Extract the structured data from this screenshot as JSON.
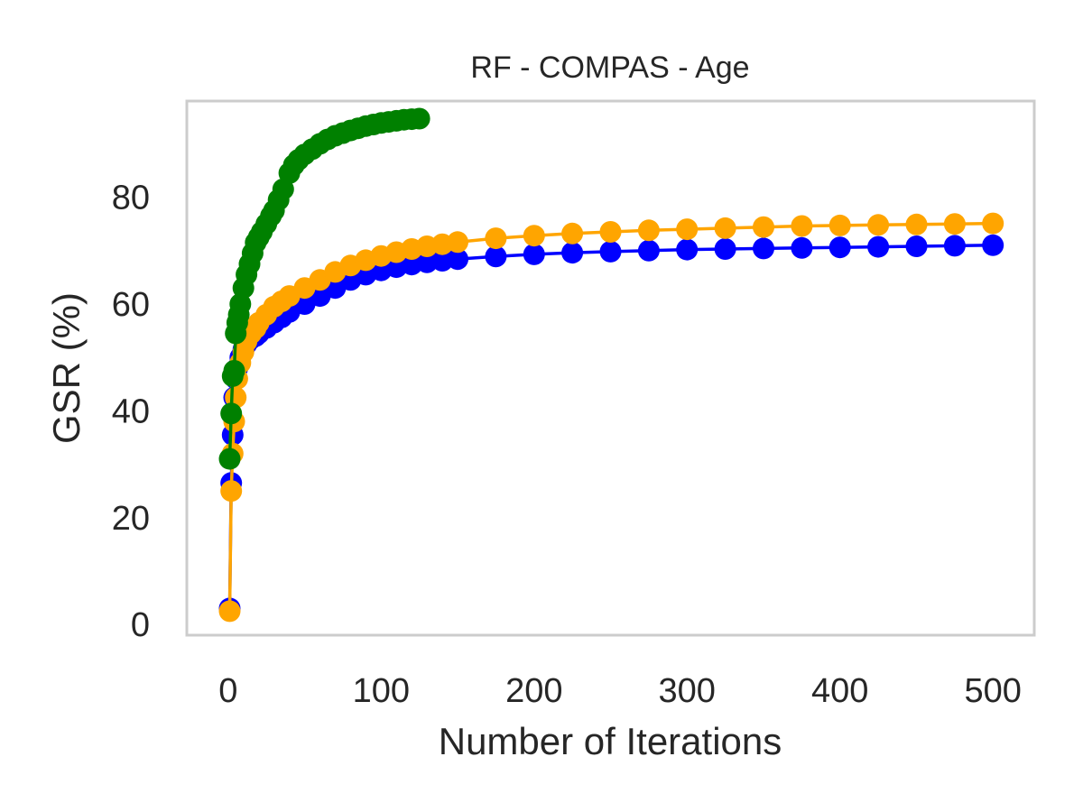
{
  "chart_data": {
    "type": "line",
    "title": "RF - COMPAS - Age",
    "xlabel": "Number of Iterations",
    "ylabel": "GSR (%)",
    "xlim": [
      -27,
      527
    ],
    "ylim": [
      -2,
      98
    ],
    "xticks": [
      0,
      100,
      200,
      300,
      400,
      500
    ],
    "yticks": [
      0,
      20,
      40,
      60,
      80
    ],
    "grid": false,
    "colors": {
      "frame": "#cccccc",
      "text": "#262626"
    },
    "series": [
      {
        "color": "#0000ff",
        "x": [
          1,
          2,
          3,
          4,
          5,
          6,
          8,
          10,
          12,
          15,
          18,
          20,
          25,
          30,
          35,
          40,
          50,
          60,
          70,
          80,
          90,
          100,
          110,
          120,
          130,
          140,
          150,
          175,
          200,
          225,
          250,
          275,
          300,
          325,
          350,
          375,
          400,
          425,
          450,
          475,
          500
        ],
        "y": [
          3,
          26.5,
          35.5,
          42.5,
          46,
          48,
          50,
          51.5,
          52.5,
          53.5,
          54,
          54.5,
          55.5,
          56.5,
          57.5,
          58.5,
          60,
          61.5,
          63,
          64.5,
          65.5,
          66.3,
          66.9,
          67.4,
          67.8,
          68.1,
          68.4,
          68.9,
          69.3,
          69.6,
          69.8,
          70.0,
          70.2,
          70.3,
          70.4,
          70.5,
          70.6,
          70.7,
          70.8,
          70.9,
          71.0
        ]
      },
      {
        "color": "#ffa500",
        "x": [
          1,
          2,
          3,
          4,
          5,
          6,
          8,
          10,
          12,
          15,
          18,
          20,
          25,
          30,
          35,
          40,
          50,
          60,
          70,
          80,
          90,
          100,
          110,
          120,
          130,
          140,
          150,
          175,
          200,
          225,
          250,
          275,
          300,
          325,
          350,
          375,
          400,
          425,
          450,
          475,
          500
        ],
        "y": [
          2.5,
          25,
          32,
          38,
          42.5,
          46,
          49,
          51,
          53,
          54.5,
          55.5,
          56.5,
          58,
          59.5,
          60.5,
          61.5,
          63,
          64.5,
          66,
          67.2,
          68.2,
          69,
          69.7,
          70.3,
          70.8,
          71.2,
          71.6,
          72.3,
          72.8,
          73.2,
          73.5,
          73.8,
          74.0,
          74.2,
          74.4,
          74.6,
          74.7,
          74.8,
          74.9,
          75.0,
          75.1
        ]
      },
      {
        "color": "#008000",
        "x": [
          1,
          2,
          3,
          4,
          5,
          6,
          7,
          8,
          10,
          12,
          14,
          16,
          18,
          20,
          22,
          25,
          28,
          30,
          33,
          36,
          40,
          43,
          46,
          50,
          55,
          60,
          65,
          70,
          75,
          80,
          85,
          90,
          95,
          100,
          105,
          110,
          115,
          120,
          125
        ],
        "y": [
          31,
          39.5,
          46.5,
          47.5,
          54.5,
          56.5,
          58,
          60,
          63,
          65.5,
          67.5,
          69.5,
          71.5,
          72.5,
          73.5,
          75,
          76.5,
          77.5,
          79.5,
          81.5,
          84.5,
          86,
          87,
          88,
          89,
          90,
          90.8,
          91.5,
          92,
          92.5,
          92.9,
          93.3,
          93.6,
          93.9,
          94.1,
          94.3,
          94.5,
          94.6,
          94.7
        ]
      }
    ]
  }
}
